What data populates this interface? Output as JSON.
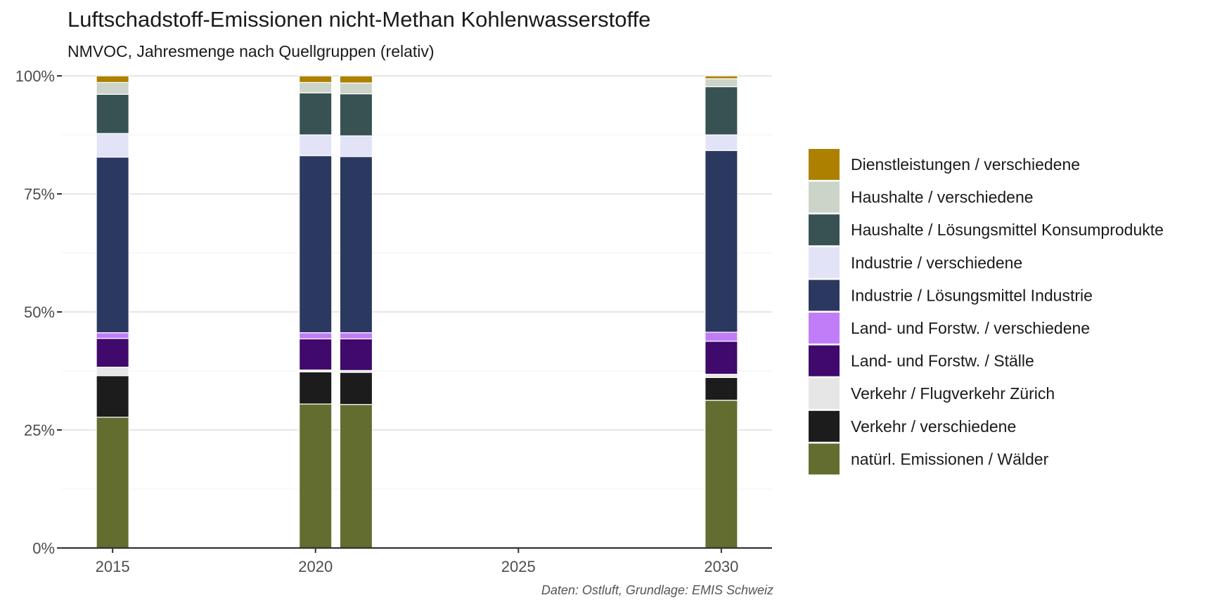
{
  "chart_data": {
    "type": "bar",
    "title": "Luftschadstoff-Emissionen nicht-Methan Kohlenwasserstoffe",
    "subtitle": "NMVOC, Jahresmenge nach Quellgruppen (relativ)",
    "caption": "Daten: Ostluft, Grundlage: EMIS Schweiz",
    "x_ticks": [
      2015,
      2020,
      2025,
      2030
    ],
    "x_range": [
      2013.75,
      2031.25
    ],
    "y_ticks": [
      {
        "value": 0,
        "label": "0%"
      },
      {
        "value": 0.25,
        "label": "25%"
      },
      {
        "value": 0.5,
        "label": "50%"
      },
      {
        "value": 0.75,
        "label": "75%"
      },
      {
        "value": 1,
        "label": "100%"
      }
    ],
    "ylim": [
      0,
      1
    ],
    "bar_width_years": 0.8,
    "grid": true,
    "legend_position": "right",
    "series": [
      {
        "name": "natürl. Emissionen / Wälder",
        "color": "#636d2f"
      },
      {
        "name": "Verkehr / verschiedene",
        "color": "#1c1c1c"
      },
      {
        "name": "Verkehr / Flugverkehr Zürich",
        "color": "#e6e6e6"
      },
      {
        "name": "Land- und Forstw. / Ställe",
        "color": "#3f0a6b"
      },
      {
        "name": "Land- und Forstw. / verschiedene",
        "color": "#c07df7"
      },
      {
        "name": "Industrie / Lösungsmittel Industrie",
        "color": "#2b3961"
      },
      {
        "name": "Industrie / verschiedene",
        "color": "#e2e3f7"
      },
      {
        "name": "Haushalte / Lösungsmittel Konsumprodukte",
        "color": "#385253"
      },
      {
        "name": "Haushalte / verschiedene",
        "color": "#ccd4c9"
      },
      {
        "name": "Dienstleistungen / verschiedene",
        "color": "#ad8000"
      }
    ],
    "legend_order": [
      9,
      8,
      7,
      6,
      5,
      4,
      3,
      2,
      1,
      0
    ],
    "bars": [
      {
        "year": 2015,
        "values": [
          0.277,
          0.088,
          0.018,
          0.061,
          0.012,
          0.372,
          0.05,
          0.083,
          0.025,
          0.014
        ]
      },
      {
        "year": 2020,
        "values": [
          0.305,
          0.068,
          0.004,
          0.066,
          0.013,
          0.375,
          0.044,
          0.089,
          0.022,
          0.014
        ]
      },
      {
        "year": 2021,
        "values": [
          0.304,
          0.068,
          0.004,
          0.067,
          0.013,
          0.373,
          0.044,
          0.089,
          0.023,
          0.015
        ]
      },
      {
        "year": 2030,
        "values": [
          0.313,
          0.048,
          0.007,
          0.07,
          0.019,
          0.385,
          0.033,
          0.102,
          0.017,
          0.006
        ]
      }
    ]
  }
}
